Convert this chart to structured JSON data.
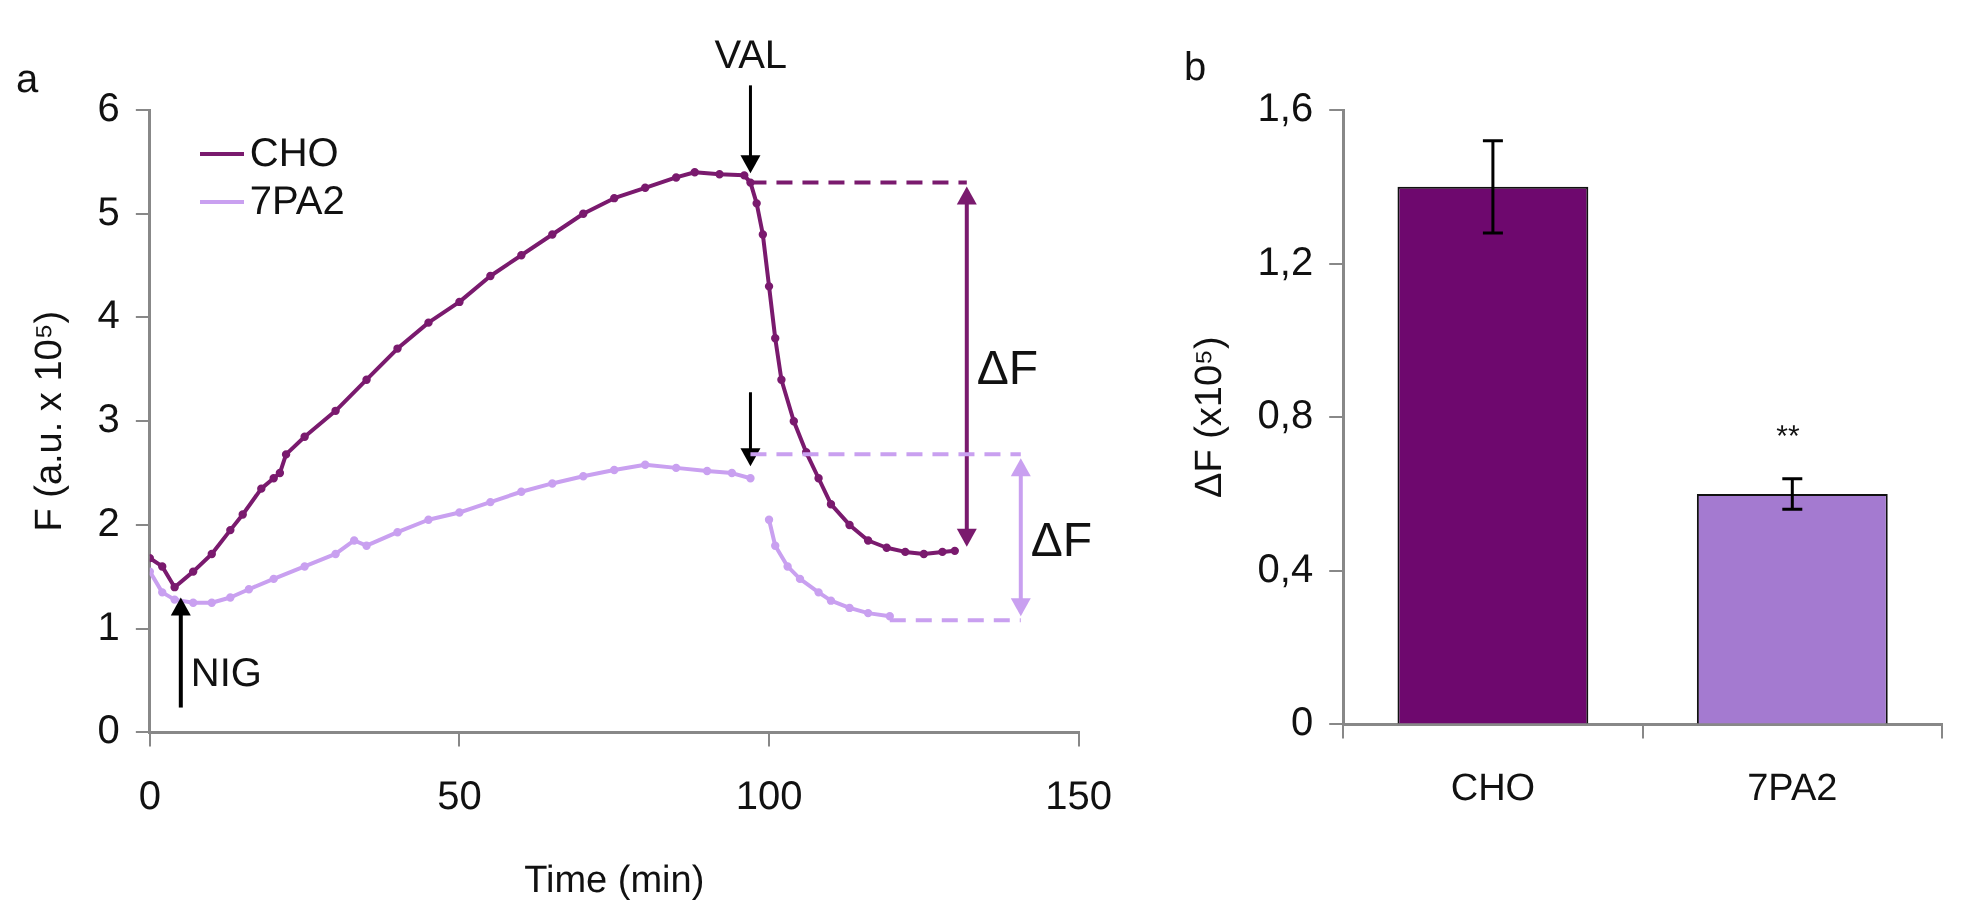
{
  "chart_data": [
    {
      "type": "line",
      "xlabel": "Time (min)",
      "ylabel": "F (a.u. x 10⁵)",
      "xlim": [
        0,
        150
      ],
      "xticks": [
        0,
        50,
        100,
        150
      ],
      "ylim": [
        0,
        6
      ],
      "yticks": [
        0,
        1,
        2,
        3,
        4,
        5,
        6
      ],
      "grid": false,
      "legend": "top left",
      "marker": "circle",
      "line_style": "solid",
      "series": [
        {
          "name": "CHO",
          "color": "#7a1a6e",
          "x": [
            0,
            2,
            4,
            7,
            10,
            13,
            15,
            18,
            20,
            21,
            22,
            25,
            30,
            35,
            40,
            45,
            50,
            55,
            60,
            65,
            70,
            75,
            80,
            85,
            88,
            92,
            96,
            97,
            98,
            99,
            100,
            101,
            102,
            104,
            106,
            108,
            110,
            113,
            116,
            119,
            122,
            125,
            128,
            130
          ],
          "values": [
            1.68,
            1.6,
            1.4,
            1.55,
            1.72,
            1.95,
            2.1,
            2.35,
            2.45,
            2.5,
            2.68,
            2.85,
            3.1,
            3.4,
            3.7,
            3.95,
            4.15,
            4.4,
            4.6,
            4.8,
            5.0,
            5.15,
            5.25,
            5.35,
            5.4,
            5.38,
            5.37,
            5.3,
            5.1,
            4.8,
            4.3,
            3.8,
            3.4,
            3.0,
            2.7,
            2.45,
            2.2,
            2.0,
            1.85,
            1.78,
            1.74,
            1.72,
            1.74,
            1.75
          ]
        },
        {
          "name": "7PA2",
          "color": "#c9a0f0",
          "x": [
            0,
            2,
            4,
            7,
            10,
            13,
            16,
            20,
            25,
            30,
            33,
            35,
            40,
            45,
            50,
            55,
            60,
            65,
            70,
            75,
            80,
            85,
            90,
            94,
            97,
            98.5,
            100,
            101,
            103,
            105,
            108,
            110,
            113,
            116,
            119.5
          ],
          "values": [
            1.55,
            1.35,
            1.28,
            1.25,
            1.25,
            1.3,
            1.38,
            1.48,
            1.6,
            1.72,
            1.85,
            1.8,
            1.93,
            2.05,
            2.12,
            2.22,
            2.32,
            2.4,
            2.47,
            2.53,
            2.58,
            2.55,
            2.52,
            2.5,
            2.45,
            null,
            2.05,
            1.8,
            1.6,
            1.48,
            1.35,
            1.27,
            1.2,
            1.15,
            1.12
          ]
        }
      ],
      "annotations": [
        "a",
        {
          "text": "NIG",
          "x": 5,
          "y": 1.3
        },
        {
          "text": "VAL",
          "x": 97,
          "y": 5.37
        },
        "ΔF",
        {
          "text": "ΔF",
          "x": 119.5,
          "y": 1.12
        }
      ]
    },
    {
      "type": "bar",
      "ylabel": "ΔF (x10⁵)",
      "categories": [
        "CHO",
        "7PA2"
      ],
      "values": [
        1.4,
        0.6
      ],
      "errors": [
        0.12,
        0.04
      ],
      "colors": [
        "#6e086e",
        "#a47ad0"
      ],
      "ylim": [
        0,
        1.6
      ],
      "yticks": [
        0,
        {
          "value": 0.4,
          "label": "0,4"
        },
        {
          "value": 0.8,
          "label": "0,8"
        },
        {
          "value": 1.2,
          "label": "1,2"
        },
        {
          "value": 1.6,
          "label": "1,6"
        }
      ],
      "grid": false,
      "legend": false,
      "annotations": [
        "b",
        {
          "text": "**",
          "x": "7PA2",
          "y": 0.64
        }
      ]
    }
  ]
}
